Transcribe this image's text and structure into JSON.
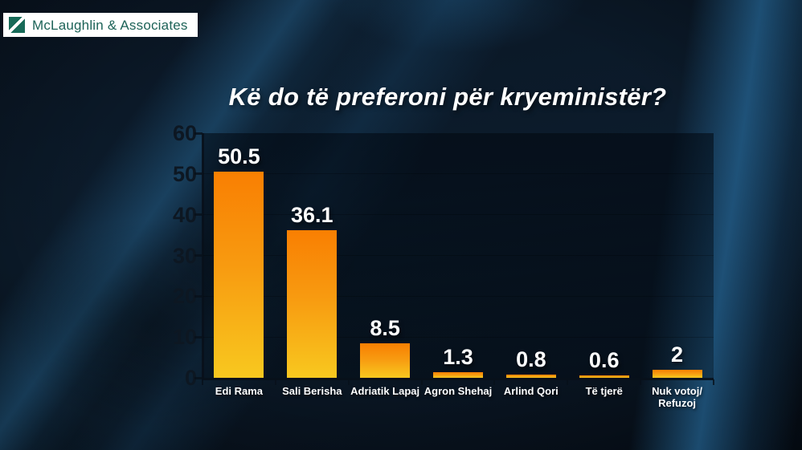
{
  "logo": {
    "text": "McLaughlin & Associates",
    "icon": "diagonal-flag-icon",
    "icon_color": "#176a58",
    "text_color": "#1d6358"
  },
  "chart_data": {
    "type": "bar",
    "title": "Kë do të preferoni për kryeministër?",
    "categories": [
      "Edi Rama",
      "Sali Berisha",
      "Adriatik Lapaj",
      "Agron Shehaj",
      "Arlind Qori",
      "Të tjerë",
      "Nuk votoj/Refuzoj"
    ],
    "values": [
      50.5,
      36.1,
      8.5,
      1.3,
      0.8,
      0.6,
      2
    ],
    "value_labels": [
      "50.5",
      "36.1",
      "8.5",
      "1.3",
      "0.8",
      "0.6",
      "2"
    ],
    "xlabel": "",
    "ylabel": "",
    "ylim": [
      0,
      60
    ],
    "yticks": [
      0,
      10,
      20,
      30,
      40,
      50,
      60
    ],
    "grid": "faint horizontal gridlines inside plot",
    "legend": "none",
    "colors": {
      "bar_gradient_top": "#f97f02",
      "bar_gradient_bottom": "#f8c81f",
      "value_label": "#ffffff",
      "category_label": "#ffffff",
      "axis_line": "#081a26",
      "tick_label": "#0d1722",
      "plot_overlay": "rgba(0,6,14,0.5)"
    }
  },
  "background": {
    "base": "#0a1624",
    "streak_blue": "#2b73a5",
    "bright_streak_blue": "#3085c2"
  }
}
